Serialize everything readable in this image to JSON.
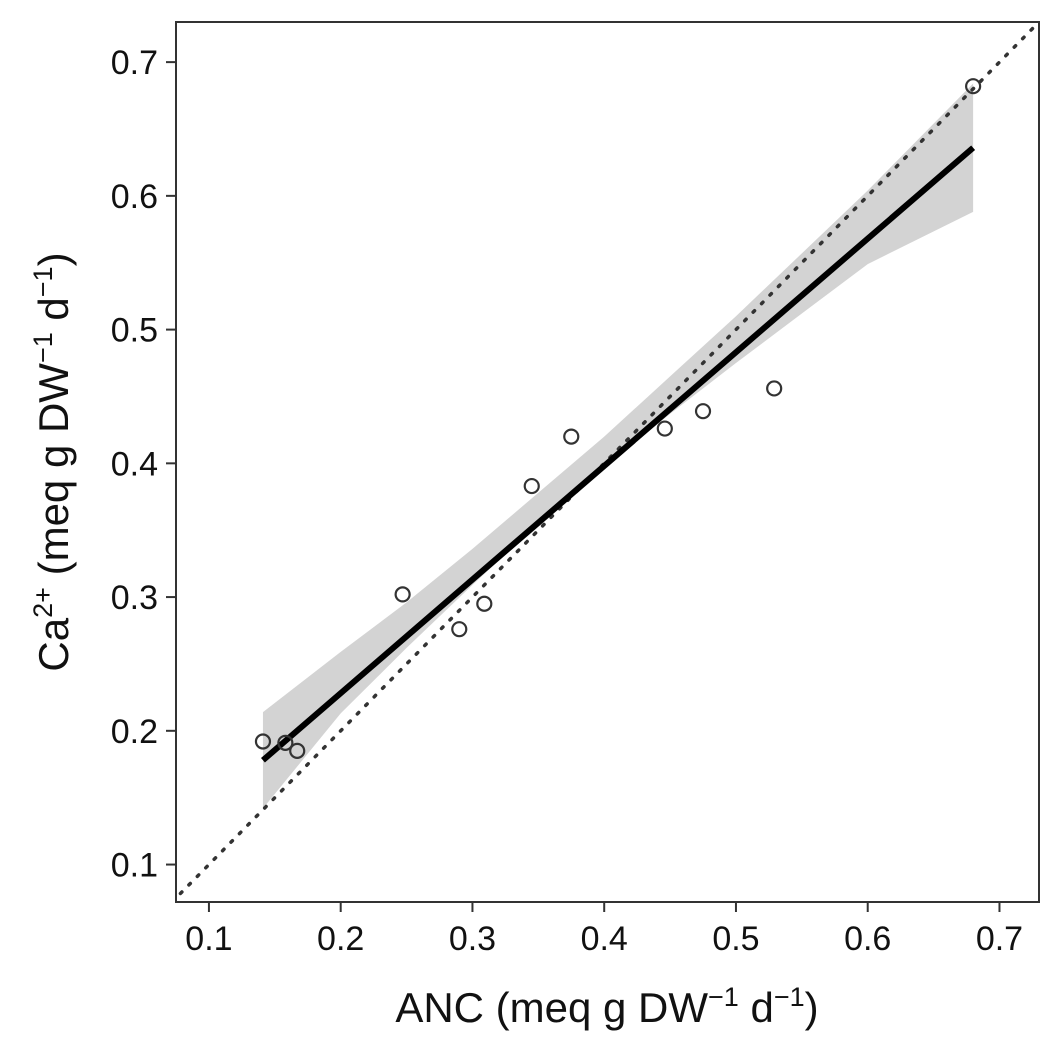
{
  "chart_data": {
    "type": "scatter",
    "xlabel": {
      "main": "ANC (meq g DW",
      "sup1": "−1",
      "mid": " d",
      "sup2": "−1",
      "end": ")"
    },
    "ylabel": {
      "pre": "Ca",
      "sup0": "2+",
      "main": " (meq g DW",
      "sup1": "−1",
      "mid": " d",
      "sup2": "−1",
      "end": ")"
    },
    "xlim": [
      0.075,
      0.73
    ],
    "ylim": [
      0.072,
      0.73
    ],
    "x_ticks": [
      "0.1",
      "0.2",
      "0.3",
      "0.4",
      "0.5",
      "0.6",
      "0.7"
    ],
    "y_ticks": [
      "0.1",
      "0.2",
      "0.3",
      "0.4",
      "0.5",
      "0.6",
      "0.7"
    ],
    "grid": false,
    "legend": "none",
    "points": [
      {
        "x": 0.141,
        "y": 0.192
      },
      {
        "x": 0.158,
        "y": 0.191
      },
      {
        "x": 0.167,
        "y": 0.185
      },
      {
        "x": 0.247,
        "y": 0.302
      },
      {
        "x": 0.29,
        "y": 0.276
      },
      {
        "x": 0.309,
        "y": 0.295
      },
      {
        "x": 0.345,
        "y": 0.383
      },
      {
        "x": 0.375,
        "y": 0.42
      },
      {
        "x": 0.446,
        "y": 0.426
      },
      {
        "x": 0.475,
        "y": 0.439
      },
      {
        "x": 0.529,
        "y": 0.456
      },
      {
        "x": 0.68,
        "y": 0.682
      }
    ],
    "fit_line": {
      "x0": 0.141,
      "y0": 0.178,
      "x1": 0.68,
      "y1": 0.636
    },
    "confidence_band": [
      {
        "x": 0.141,
        "lo": 0.142,
        "hi": 0.214
      },
      {
        "x": 0.2,
        "lo": 0.213,
        "hi": 0.259
      },
      {
        "x": 0.25,
        "lo": 0.262,
        "hi": 0.296
      },
      {
        "x": 0.3,
        "lo": 0.309,
        "hi": 0.336
      },
      {
        "x": 0.35,
        "lo": 0.355,
        "hi": 0.378
      },
      {
        "x": 0.4,
        "lo": 0.397,
        "hi": 0.42
      },
      {
        "x": 0.45,
        "lo": 0.437,
        "hi": 0.465
      },
      {
        "x": 0.5,
        "lo": 0.475,
        "hi": 0.51
      },
      {
        "x": 0.55,
        "lo": 0.512,
        "hi": 0.557
      },
      {
        "x": 0.6,
        "lo": 0.549,
        "hi": 0.604
      },
      {
        "x": 0.68,
        "lo": 0.588,
        "hi": 0.684
      }
    ],
    "reference_line": {
      "type": "identity",
      "style": "dotted"
    },
    "colors": {
      "points": "#333333",
      "fit": "#000000",
      "band": "#d3d3d3",
      "reference": "#333333",
      "frame": "#333333"
    }
  }
}
